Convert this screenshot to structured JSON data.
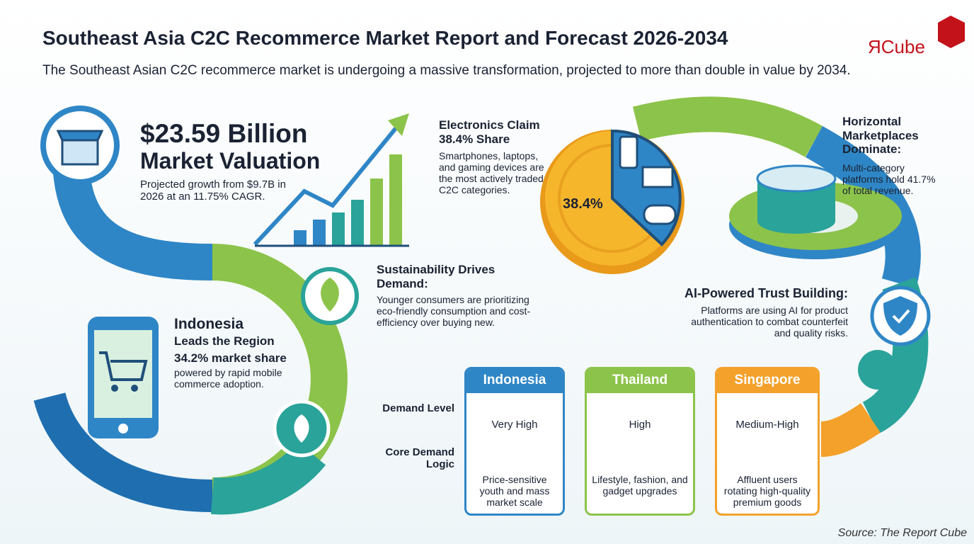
{
  "header": {
    "title": "Southeast Asia C2C Recommerce Market Report and Forecast 2026-2034",
    "subtitle": "The Southeast Asian C2C recommerce market is undergoing a massive transformation, projected to more than double in value by 2034."
  },
  "logo": {
    "mark": "Я",
    "text": "Cube"
  },
  "valuation": {
    "headline": "$23.59 Billion",
    "label": "Market Valuation",
    "body": "Projected growth from $9.7B in 2026 at an 11.75% CAGR."
  },
  "indonesia": {
    "title": "Indonesia",
    "subtitle": "Leads the Region",
    "share": "34.2% market share",
    "body": "powered by rapid mobile commerce adoption."
  },
  "sustainability": {
    "title": "Sustainability Drives Demand:",
    "body": "Younger consumers are prioritizing eco-friendly consumption and cost-efficiency over buying new."
  },
  "electronics": {
    "title": "Electronics Claim 38.4% Share",
    "body": "Smartphones, laptops, and gaming devices are the most actively traded C2C categories.",
    "pie_label": "38.4%"
  },
  "horizontal": {
    "title": "Horizontal Marketplaces Dominate:",
    "body": "Multi-category platforms hold 41.7% of total revenue."
  },
  "ai": {
    "title": "AI-Powered Trust Building:",
    "body": "Platforms are using AI for product authentication to combat counterfeit and quality risks."
  },
  "table": {
    "row_labels": [
      "Demand Level",
      "Core Demand Logic"
    ],
    "columns": [
      {
        "country": "Indonesia",
        "level": "Very High",
        "logic": "Price-sensitive youth and mass market scale"
      },
      {
        "country": "Thailand",
        "level": "High",
        "logic": "Lifestyle, fashion, and gadget upgrades"
      },
      {
        "country": "Singapore",
        "level": "Medium-High",
        "logic": "Affluent users rotating high-quality premium goods"
      }
    ]
  },
  "source": "Source: The Report Cube"
}
